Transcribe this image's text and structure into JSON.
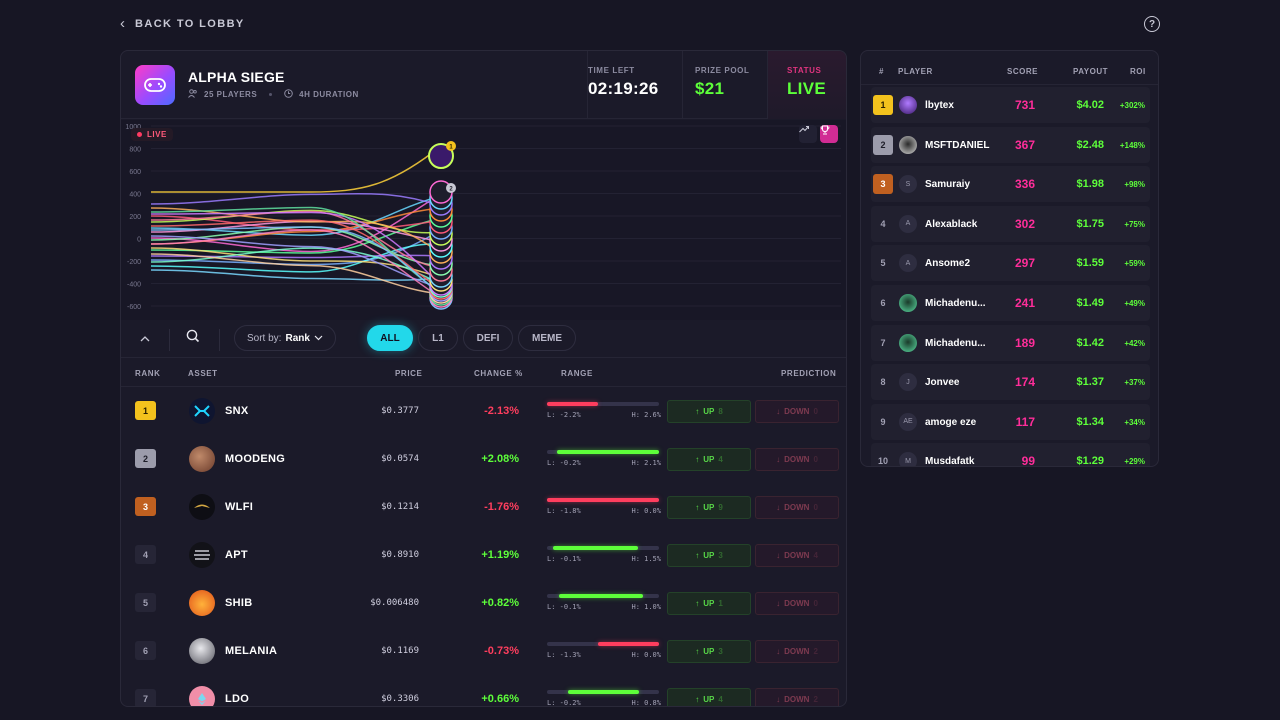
{
  "nav": {
    "back_label": "BACK TO LOBBY",
    "help_icon": "?"
  },
  "game": {
    "title": "ALPHA SIEGE",
    "players": "25 PLAYERS",
    "duration": "4H DURATION",
    "time_left_label": "TIME LEFT",
    "time_left": "02:19:26",
    "prize_pool_label": "PRIZE POOL",
    "prize_pool": "$21",
    "status_label": "STATUS",
    "status": "LIVE"
  },
  "chart": {
    "live_label": "LIVE",
    "y_ticks": [
      "1000",
      "800",
      "600",
      "400",
      "200",
      "0",
      "-200",
      "-400",
      "-600"
    ],
    "badge_1": "1",
    "badge_2": "2"
  },
  "filters": {
    "sort_label": "Sort by:",
    "sort_value": "Rank",
    "tabs": [
      "ALL",
      "L1",
      "DEFI",
      "MEME"
    ]
  },
  "table": {
    "headers": {
      "rank": "RANK",
      "asset": "ASSET",
      "price": "PRICE",
      "change": "CHANGE %",
      "range": "RANGE",
      "prediction": "PREDICTION"
    },
    "rows": [
      {
        "rank": "1",
        "name": "SNX",
        "price": "$0.3777",
        "change": "-2.13%",
        "low": "L: -2.2%",
        "high": "H: 2.6%",
        "up": "UP",
        "up_count": "8",
        "down": "DOWN",
        "down_count": "0"
      },
      {
        "rank": "2",
        "name": "MOODENG",
        "price": "$0.0574",
        "change": "+2.08%",
        "low": "L: -0.2%",
        "high": "H: 2.1%",
        "up": "UP",
        "up_count": "4",
        "down": "DOWN",
        "down_count": "0"
      },
      {
        "rank": "3",
        "name": "WLFI",
        "price": "$0.1214",
        "change": "-1.76%",
        "low": "L: -1.8%",
        "high": "H: 0.0%",
        "up": "UP",
        "up_count": "9",
        "down": "DOWN",
        "down_count": "0"
      },
      {
        "rank": "4",
        "name": "APT",
        "price": "$0.8910",
        "change": "+1.19%",
        "low": "L: -0.1%",
        "high": "H: 1.5%",
        "up": "UP",
        "up_count": "3",
        "down": "DOWN",
        "down_count": "4"
      },
      {
        "rank": "5",
        "name": "SHIB",
        "price": "$0.006480",
        "change": "+0.82%",
        "low": "L: -0.1%",
        "high": "H: 1.0%",
        "up": "UP",
        "up_count": "1",
        "down": "DOWN",
        "down_count": "0"
      },
      {
        "rank": "6",
        "name": "MELANIA",
        "price": "$0.1169",
        "change": "-0.73%",
        "low": "L: -1.3%",
        "high": "H: 0.0%",
        "up": "UP",
        "up_count": "3",
        "down": "DOWN",
        "down_count": "2"
      },
      {
        "rank": "7",
        "name": "LDO",
        "price": "$0.3306",
        "change": "+0.66%",
        "low": "L: -0.2%",
        "high": "H: 0.8%",
        "up": "UP",
        "up_count": "4",
        "down": "DOWN",
        "down_count": "2"
      }
    ]
  },
  "leaderboard": {
    "headers": {
      "rank": "#",
      "player": "PLAYER",
      "score": "SCORE",
      "payout": "PAYOUT",
      "roi": "ROI"
    },
    "rows": [
      {
        "rank": "1",
        "avatar": "",
        "name": "lbytex",
        "score": "731",
        "payout": "$4.02",
        "roi": "+302%"
      },
      {
        "rank": "2",
        "avatar": "",
        "name": "MSFTDANIEL",
        "score": "367",
        "payout": "$2.48",
        "roi": "+148%"
      },
      {
        "rank": "3",
        "avatar": "S",
        "name": "Samuraiy",
        "score": "336",
        "payout": "$1.98",
        "roi": "+98%"
      },
      {
        "rank": "4",
        "avatar": "A",
        "name": "Alexablack",
        "score": "302",
        "payout": "$1.75",
        "roi": "+75%"
      },
      {
        "rank": "5",
        "avatar": "A",
        "name": "Ansome2",
        "score": "297",
        "payout": "$1.59",
        "roi": "+59%"
      },
      {
        "rank": "6",
        "avatar": "",
        "name": "Michadenu...",
        "score": "241",
        "payout": "$1.49",
        "roi": "+49%"
      },
      {
        "rank": "7",
        "avatar": "",
        "name": "Michadenu...",
        "score": "189",
        "payout": "$1.42",
        "roi": "+42%"
      },
      {
        "rank": "8",
        "avatar": "J",
        "name": "Jonvee",
        "score": "174",
        "payout": "$1.37",
        "roi": "+37%"
      },
      {
        "rank": "9",
        "avatar": "AE",
        "name": "amoge eze",
        "score": "117",
        "payout": "$1.34",
        "roi": "+34%"
      },
      {
        "rank": "10",
        "avatar": "M",
        "name": "Musdafatk",
        "score": "99",
        "payout": "$1.29",
        "roi": "+29%"
      }
    ]
  },
  "colors": {
    "accent": "#22d8ea",
    "up": "#5dff3a",
    "down": "#ff3e5e",
    "score": "#ff2d9a"
  }
}
